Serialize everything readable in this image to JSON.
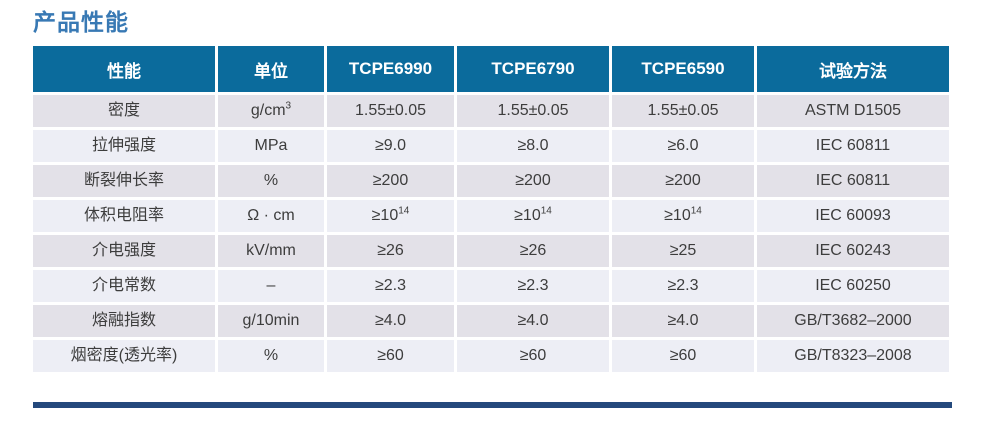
{
  "page_title": "产品性能",
  "colors": {
    "title_blue": "#3879b4",
    "header_bg": "#0b6b9c",
    "row_odd": "#e3e1e8",
    "row_even": "#edeef5",
    "body_text": "#3d3d3d",
    "bottom_bar": "#24497c"
  },
  "table": {
    "headers": [
      "性能",
      "单位",
      "TCPE6990",
      "TCPE6790",
      "TCPE6590",
      "试验方法"
    ],
    "rows": [
      {
        "cells": [
          {
            "t": "密度"
          },
          {
            "t": "g/cm",
            "sup": "3"
          },
          {
            "t": "1.55±0.05"
          },
          {
            "t": "1.55±0.05"
          },
          {
            "t": "1.55±0.05"
          },
          {
            "t": "ASTM D1505"
          }
        ]
      },
      {
        "cells": [
          {
            "t": "拉伸强度"
          },
          {
            "t": "MPa"
          },
          {
            "t": "≥9.0"
          },
          {
            "t": "≥8.0"
          },
          {
            "t": "≥6.0"
          },
          {
            "t": "IEC 60811"
          }
        ]
      },
      {
        "cells": [
          {
            "t": "断裂伸长率"
          },
          {
            "t": "%"
          },
          {
            "t": "≥200"
          },
          {
            "t": "≥200"
          },
          {
            "t": "≥200"
          },
          {
            "t": "IEC 60811"
          }
        ]
      },
      {
        "cells": [
          {
            "t": "体积电阻率"
          },
          {
            "t": "Ω · cm"
          },
          {
            "t": "≥10",
            "sup": "14"
          },
          {
            "t": "≥10",
            "sup": "14"
          },
          {
            "t": "≥10",
            "sup": "14"
          },
          {
            "t": "IEC 60093"
          }
        ]
      },
      {
        "cells": [
          {
            "t": "介电强度"
          },
          {
            "t": "kV/mm"
          },
          {
            "t": "≥26"
          },
          {
            "t": "≥26"
          },
          {
            "t": "≥25"
          },
          {
            "t": "IEC 60243"
          }
        ]
      },
      {
        "cells": [
          {
            "t": "介电常数"
          },
          {
            "t": "–"
          },
          {
            "t": "≥2.3"
          },
          {
            "t": "≥2.3"
          },
          {
            "t": "≥2.3"
          },
          {
            "t": "IEC 60250"
          }
        ]
      },
      {
        "cells": [
          {
            "t": "熔融指数"
          },
          {
            "t": "g/10min"
          },
          {
            "t": "≥4.0"
          },
          {
            "t": "≥4.0"
          },
          {
            "t": "≥4.0"
          },
          {
            "t": "GB/T3682–2000"
          }
        ]
      },
      {
        "cells": [
          {
            "t": "烟密度(透光率)"
          },
          {
            "t": "%"
          },
          {
            "t": "≥60"
          },
          {
            "t": "≥60"
          },
          {
            "t": "≥60"
          },
          {
            "t": "GB/T8323–2008"
          }
        ]
      }
    ]
  }
}
